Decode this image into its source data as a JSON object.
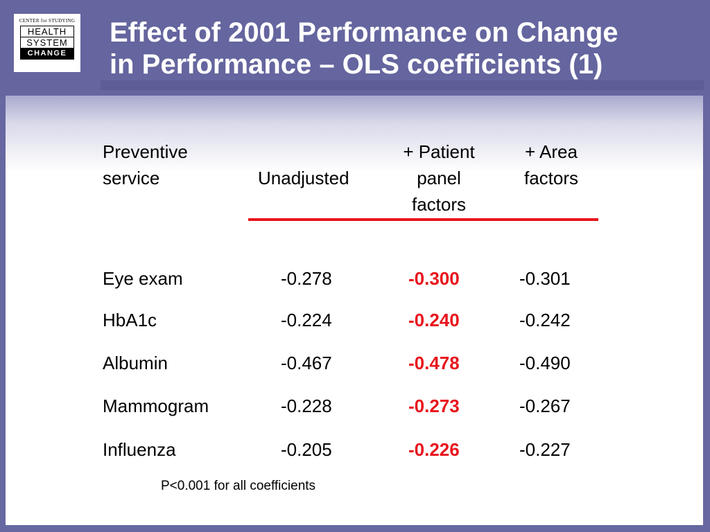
{
  "logo": {
    "top": "CENTER for STUDYING",
    "line1": "HEALTH",
    "line2": "SYSTEM",
    "line3": "CHANGE"
  },
  "title": {
    "line1": "Effect of 2001 Performance on Change",
    "line2": "in Performance – OLS coefficients (1)"
  },
  "table": {
    "headers": {
      "col0": [
        "Preventive",
        "service"
      ],
      "col1": [
        "Unadjusted"
      ],
      "col2": [
        "+ Patient",
        "panel",
        "factors"
      ],
      "col3": [
        "+ Area",
        "factors"
      ]
    },
    "rows": [
      {
        "service": "Eye exam",
        "unadjusted": "-0.278",
        "patient": "-0.300",
        "area": "-0.301"
      },
      {
        "service": "HbA1c",
        "unadjusted": "-0.224",
        "patient": "-0.240",
        "area": "-0.242"
      },
      {
        "service": "Albumin",
        "unadjusted": "-0.467",
        "patient": "-0.478",
        "area": "-0.490"
      },
      {
        "service": "Mammogram",
        "unadjusted": "-0.228",
        "patient": "-0.273",
        "area": "-0.267"
      },
      {
        "service": "Influenza",
        "unadjusted": "-0.205",
        "patient": "-0.226",
        "area": "-0.227"
      }
    ]
  },
  "footnote": "P<0.001 for all coefficients",
  "colors": {
    "background": "#6767a1",
    "highlight": "#e8141c",
    "title_text": "#ffffff"
  }
}
